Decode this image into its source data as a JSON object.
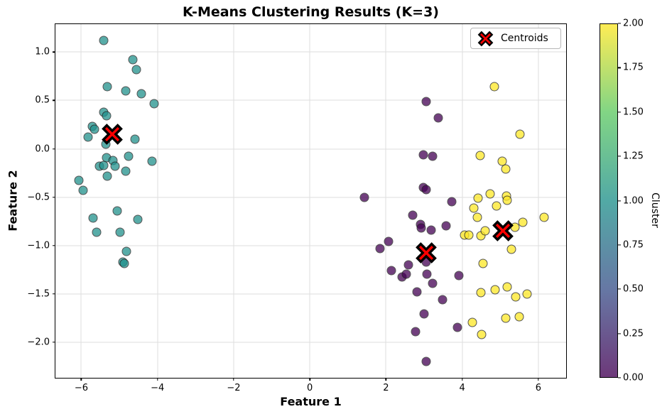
{
  "chart": {
    "title": "K-Means Clustering Results (K=3)",
    "xlabel": "Feature 1",
    "ylabel": "Feature 2"
  },
  "legend": {
    "centroids_label": "Centroids",
    "marker_color": "#ff0000"
  },
  "colorbar": {
    "label": "Cluster",
    "min": 0,
    "max": 2,
    "ticks": [
      {
        "value": 0.0,
        "label": "0.00"
      },
      {
        "value": 0.25,
        "label": "0.25"
      },
      {
        "value": 0.5,
        "label": "0.50"
      },
      {
        "value": 0.75,
        "label": "0.75"
      },
      {
        "value": 1.0,
        "label": "1.00"
      },
      {
        "value": 1.25,
        "label": "1.25"
      },
      {
        "value": 1.5,
        "label": "1.50"
      },
      {
        "value": 1.75,
        "label": "1.75"
      },
      {
        "value": 2.0,
        "label": "2.00"
      }
    ],
    "gradient_stops": [
      "#440154",
      "#3b528b",
      "#21918c",
      "#5ec962",
      "#fde725"
    ]
  },
  "chart_data": {
    "type": "scatter",
    "title": "K-Means Clustering Results (K=3)",
    "xlabel": "Feature 1",
    "ylabel": "Feature 2",
    "xlim": [
      -6.68,
      6.73
    ],
    "ylim": [
      -2.37,
      1.29
    ],
    "grid": true,
    "xticks": [
      {
        "value": -6,
        "label": "−6"
      },
      {
        "value": -4,
        "label": "−4"
      },
      {
        "value": -2,
        "label": "−2"
      },
      {
        "value": 0,
        "label": "0"
      },
      {
        "value": 2,
        "label": "2"
      },
      {
        "value": 4,
        "label": "4"
      },
      {
        "value": 6,
        "label": "6"
      }
    ],
    "yticks": [
      {
        "value": 1.0,
        "label": "1.0"
      },
      {
        "value": 0.5,
        "label": "0.5"
      },
      {
        "value": 0.0,
        "label": "0.0"
      },
      {
        "value": -0.5,
        "label": "−0.5"
      },
      {
        "value": -1.0,
        "label": "−1.0"
      },
      {
        "value": -1.5,
        "label": "−1.5"
      },
      {
        "value": -2.0,
        "label": "−2.0"
      }
    ],
    "series": [
      {
        "name": "cluster-0",
        "cluster_value": 0,
        "color": "#440154",
        "marker": "circle",
        "points": [
          [
            3.05,
            0.49
          ],
          [
            3.38,
            0.32
          ],
          [
            2.99,
            -0.06
          ],
          [
            3.22,
            -0.08
          ],
          [
            2.99,
            -0.4
          ],
          [
            3.05,
            -0.42
          ],
          [
            1.44,
            -0.5
          ],
          [
            3.72,
            -0.55
          ],
          [
            2.7,
            -0.69
          ],
          [
            2.9,
            -0.78
          ],
          [
            2.93,
            -0.82
          ],
          [
            3.19,
            -0.84
          ],
          [
            3.58,
            -0.8
          ],
          [
            2.07,
            -0.96
          ],
          [
            1.84,
            -1.03
          ],
          [
            3.05,
            -1.17
          ],
          [
            2.59,
            -1.2
          ],
          [
            2.15,
            -1.26
          ],
          [
            2.42,
            -1.33
          ],
          [
            2.54,
            -1.3
          ],
          [
            3.08,
            -1.3
          ],
          [
            3.23,
            -1.39
          ],
          [
            3.91,
            -1.31
          ],
          [
            2.82,
            -1.48
          ],
          [
            3.49,
            -1.56
          ],
          [
            3.0,
            -1.71
          ],
          [
            3.87,
            -1.85
          ],
          [
            2.77,
            -1.89
          ],
          [
            3.06,
            -2.2
          ]
        ]
      },
      {
        "name": "cluster-1",
        "cluster_value": 1,
        "color": "#21918c",
        "marker": "circle",
        "points": [
          [
            -5.41,
            1.12
          ],
          [
            -4.64,
            0.92
          ],
          [
            -4.56,
            0.82
          ],
          [
            -5.32,
            0.64
          ],
          [
            -4.83,
            0.6
          ],
          [
            -4.42,
            0.57
          ],
          [
            -4.08,
            0.47
          ],
          [
            -5.41,
            0.38
          ],
          [
            -5.33,
            0.34
          ],
          [
            -5.71,
            0.23
          ],
          [
            -5.65,
            0.2
          ],
          [
            -5.83,
            0.12
          ],
          [
            -4.6,
            0.1
          ],
          [
            -5.35,
            0.05
          ],
          [
            -5.33,
            -0.09
          ],
          [
            -5.16,
            -0.12
          ],
          [
            -4.76,
            -0.08
          ],
          [
            -4.15,
            -0.13
          ],
          [
            -5.53,
            -0.18
          ],
          [
            -5.41,
            -0.17
          ],
          [
            -5.12,
            -0.18
          ],
          [
            -4.84,
            -0.23
          ],
          [
            -5.31,
            -0.28
          ],
          [
            -6.07,
            -0.33
          ],
          [
            -5.95,
            -0.43
          ],
          [
            -5.06,
            -0.64
          ],
          [
            -5.69,
            -0.72
          ],
          [
            -4.52,
            -0.73
          ],
          [
            -5.59,
            -0.86
          ],
          [
            -4.99,
            -0.86
          ],
          [
            -4.81,
            -1.06
          ],
          [
            -4.9,
            -1.17
          ],
          [
            -4.87,
            -1.19
          ]
        ]
      },
      {
        "name": "cluster-2",
        "cluster_value": 2,
        "color": "#fde725",
        "marker": "circle",
        "points": [
          [
            4.85,
            0.64
          ],
          [
            5.51,
            0.15
          ],
          [
            4.47,
            -0.07
          ],
          [
            5.05,
            -0.13
          ],
          [
            5.15,
            -0.21
          ],
          [
            4.42,
            -0.51
          ],
          [
            4.74,
            -0.47
          ],
          [
            5.17,
            -0.49
          ],
          [
            5.19,
            -0.53
          ],
          [
            4.3,
            -0.61
          ],
          [
            4.9,
            -0.59
          ],
          [
            4.39,
            -0.71
          ],
          [
            5.59,
            -0.76
          ],
          [
            6.15,
            -0.71
          ],
          [
            5.38,
            -0.81
          ],
          [
            4.07,
            -0.89
          ],
          [
            4.18,
            -0.89
          ],
          [
            4.49,
            -0.9
          ],
          [
            4.61,
            -0.85
          ],
          [
            5.3,
            -1.04
          ],
          [
            4.54,
            -1.19
          ],
          [
            4.49,
            -1.49
          ],
          [
            4.87,
            -1.46
          ],
          [
            5.19,
            -1.43
          ],
          [
            5.4,
            -1.53
          ],
          [
            5.7,
            -1.5
          ],
          [
            5.14,
            -1.75
          ],
          [
            5.5,
            -1.74
          ],
          [
            4.26,
            -1.8
          ],
          [
            4.51,
            -1.92
          ]
        ]
      },
      {
        "name": "centroids",
        "color": "#ff0000",
        "marker": "X",
        "points": [
          [
            -5.19,
            0.15
          ],
          [
            3.05,
            -1.08
          ],
          [
            5.07,
            -0.85
          ]
        ]
      }
    ]
  }
}
